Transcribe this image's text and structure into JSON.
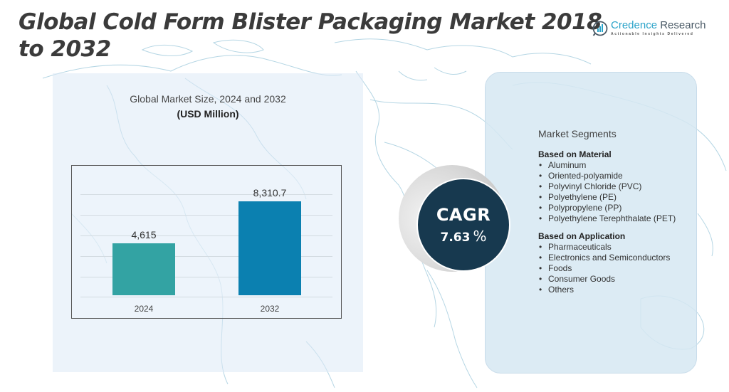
{
  "header": {
    "title": "Global Cold Form Blister Packaging Market 2018 to 2032"
  },
  "logo": {
    "name_part1": "Credence",
    "name_part2": " Research",
    "tagline": "Actionable Insights Delivered",
    "icon": "bar-chart-magnifier-icon"
  },
  "chart_data": {
    "type": "bar",
    "title": "Global Market Size, 2024 and 2032",
    "subtitle": "(USD Million)",
    "categories": [
      "2024",
      "2032"
    ],
    "values": [
      4615,
      8310.7
    ],
    "value_labels": [
      "4,615",
      "8,310.7"
    ],
    "colors": [
      "#33a3a3",
      "#0b80b0"
    ],
    "xlabel": "",
    "ylabel": "",
    "ylim": [
      0,
      9600
    ],
    "grid": true,
    "legend": "none"
  },
  "cagr": {
    "label": "CAGR",
    "value": "7.63",
    "unit": "%"
  },
  "segments": {
    "title": "Market Segments",
    "groups": [
      {
        "title": "Based on Material",
        "items": [
          "Aluminum",
          "Oriented-polyamide",
          "Polyvinyl Chloride (PVC)",
          "Polyethylene (PE)",
          "Polypropylene (PP)",
          "Polyethylene Terephthalate (PET)"
        ]
      },
      {
        "title": "Based on Application",
        "items": [
          "Pharmaceuticals",
          "Electronics and Semiconductors",
          "Foods",
          "Consumer Goods",
          "Others"
        ]
      }
    ],
    "bullet": "•"
  },
  "colors": {
    "title_text": "#3b3b3b",
    "cagr_circle": "#17394f",
    "left_panel_bg": "#e4eef6",
    "right_panel_bg": "#d6e7f2",
    "map_lines": "#a9cfe0"
  }
}
